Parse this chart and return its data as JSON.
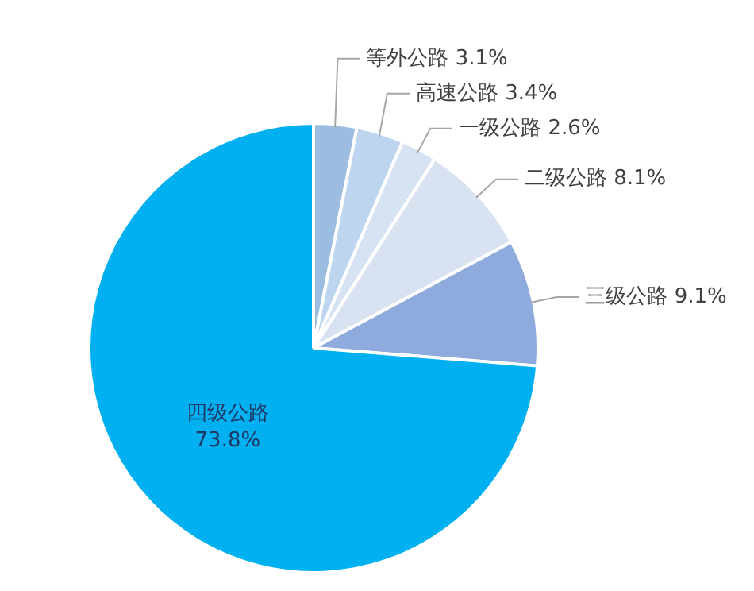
{
  "chart_data": {
    "type": "pie",
    "categories": [
      "等外公路",
      "高速公路",
      "一级公路",
      "二级公路",
      "三级公路",
      "四级公路"
    ],
    "values": [
      3.1,
      3.4,
      2.6,
      8.1,
      9.1,
      73.8
    ],
    "value_labels": [
      "3.1%",
      "3.4%",
      "2.6%",
      "8.1%",
      "9.1%",
      "73.8%"
    ],
    "colors": [
      "#9dbde0",
      "#bdd5ee",
      "#d6e3f3",
      "#d9e2f1",
      "#8faadc",
      "#00b0f0"
    ],
    "legend": false
  }
}
